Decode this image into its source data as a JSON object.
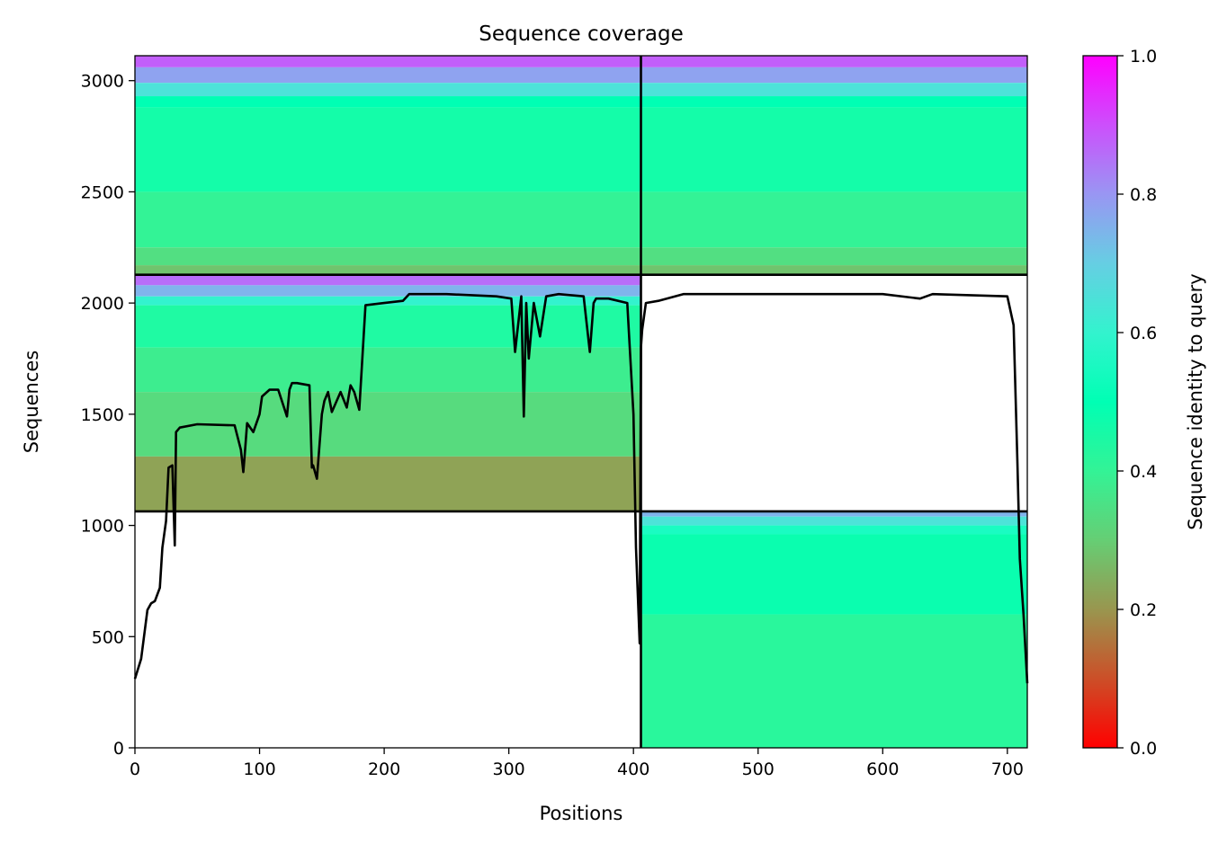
{
  "chart_data": {
    "type": "heatmap",
    "title": "Sequence coverage",
    "xlabel": "Positions",
    "ylabel": "Sequences",
    "xlim": [
      0,
      716
    ],
    "ylim": [
      0,
      3112
    ],
    "x_ticks": [
      0,
      100,
      200,
      300,
      400,
      500,
      600,
      700
    ],
    "y_ticks": [
      0,
      500,
      1000,
      1500,
      2000,
      2500,
      3000
    ],
    "domain_boundaries": {
      "x": [
        406
      ],
      "y": [
        1063,
        2127
      ]
    },
    "colorbar": {
      "label": "Sequence identity to query",
      "colormap": "rainbow_r",
      "range": [
        0,
        1
      ],
      "ticks": [
        0.0,
        0.2,
        0.4,
        0.6,
        0.8,
        1.0
      ],
      "tick_labels": [
        "0.0",
        "0.2",
        "0.4",
        "0.6",
        "0.8",
        "1.0"
      ]
    },
    "coverage_blocks": [
      {
        "block": "top",
        "x": [
          0,
          406
        ],
        "y": [
          2127,
          3112
        ],
        "bands": [
          {
            "y": [
              3060,
              3112
            ],
            "identity": 0.88
          },
          {
            "y": [
              2990,
              3060
            ],
            "identity": 0.78
          },
          {
            "y": [
              2930,
              2990
            ],
            "identity": 0.65
          },
          {
            "y": [
              2880,
              2930
            ],
            "identity": 0.5
          },
          {
            "y": [
              2500,
              2880
            ],
            "identity": 0.46
          },
          {
            "y": [
              2250,
              2500
            ],
            "identity": 0.4
          },
          {
            "y": [
              2170,
              2250
            ],
            "identity": 0.34
          },
          {
            "y": [
              2127,
              2170
            ],
            "identity": 0.28
          }
        ]
      },
      {
        "block": "top",
        "x": [
          406,
          716
        ],
        "y": [
          2127,
          3112
        ],
        "bands": [
          {
            "y": [
              3060,
              3112
            ],
            "identity": 0.88
          },
          {
            "y": [
              2990,
              3060
            ],
            "identity": 0.78
          },
          {
            "y": [
              2930,
              2990
            ],
            "identity": 0.65
          },
          {
            "y": [
              2880,
              2930
            ],
            "identity": 0.5
          },
          {
            "y": [
              2500,
              2880
            ],
            "identity": 0.46
          },
          {
            "y": [
              2250,
              2500
            ],
            "identity": 0.4
          },
          {
            "y": [
              2170,
              2250
            ],
            "identity": 0.34
          },
          {
            "y": [
              2127,
              2170
            ],
            "identity": 0.28
          }
        ]
      },
      {
        "block": "middle",
        "x": [
          0,
          406
        ],
        "y": [
          1063,
          2127
        ],
        "bands": [
          {
            "y": [
              2080,
              2127
            ],
            "identity": 0.86
          },
          {
            "y": [
              2030,
              2080
            ],
            "identity": 0.75
          },
          {
            "y": [
              1990,
              2030
            ],
            "identity": 0.6
          },
          {
            "y": [
              1800,
              1990
            ],
            "identity": 0.44
          },
          {
            "y": [
              1600,
              1800
            ],
            "identity": 0.38
          },
          {
            "y": [
              1310,
              1600
            ],
            "identity": 0.33
          },
          {
            "y": [
              1063,
              1310
            ],
            "identity": 0.22
          }
        ]
      },
      {
        "block": "bottom",
        "x": [
          406,
          716
        ],
        "y": [
          0,
          1063
        ],
        "bands": [
          {
            "y": [
              1040,
              1063
            ],
            "identity": 0.75
          },
          {
            "y": [
              1000,
              1040
            ],
            "identity": 0.65
          },
          {
            "y": [
              960,
              1000
            ],
            "identity": 0.55
          },
          {
            "y": [
              600,
              960
            ],
            "identity": 0.48
          },
          {
            "y": [
              0,
              600
            ],
            "identity": 0.42
          }
        ]
      }
    ],
    "coverage_line": {
      "name": "coverage",
      "color": "#000000",
      "x": [
        0,
        5,
        10,
        13,
        16,
        20,
        22,
        25,
        27,
        30,
        32,
        33,
        36,
        50,
        80,
        85,
        87,
        88,
        90,
        95,
        100,
        102,
        108,
        115,
        122,
        124,
        126,
        130,
        140,
        142,
        143,
        146,
        150,
        152,
        155,
        158,
        165,
        170,
        173,
        176,
        180,
        185,
        200,
        215,
        220,
        250,
        290,
        302,
        305,
        310,
        312,
        314,
        316,
        320,
        325,
        330,
        340,
        360,
        365,
        368,
        370,
        380,
        395,
        400,
        402,
        405,
        406,
        407,
        410,
        420,
        440,
        500,
        600,
        630,
        640,
        700,
        705,
        708,
        710,
        713,
        716
      ],
      "y": [
        310,
        400,
        620,
        650,
        660,
        720,
        900,
        1020,
        1260,
        1270,
        910,
        1420,
        1440,
        1455,
        1450,
        1340,
        1240,
        1310,
        1460,
        1420,
        1500,
        1580,
        1610,
        1610,
        1490,
        1610,
        1640,
        1640,
        1630,
        1260,
        1270,
        1210,
        1500,
        1560,
        1600,
        1510,
        1600,
        1530,
        1630,
        1600,
        1520,
        1990,
        2000,
        2010,
        2040,
        2040,
        2030,
        2020,
        1780,
        2030,
        1490,
        2000,
        1750,
        2000,
        1850,
        2030,
        2040,
        2030,
        1780,
        2000,
        2020,
        2020,
        2000,
        1500,
        900,
        470,
        1800,
        1880,
        2000,
        2010,
        2040,
        2040,
        2040,
        2020,
        2040,
        2030,
        1900,
        1300,
        850,
        600,
        290
      ]
    }
  }
}
